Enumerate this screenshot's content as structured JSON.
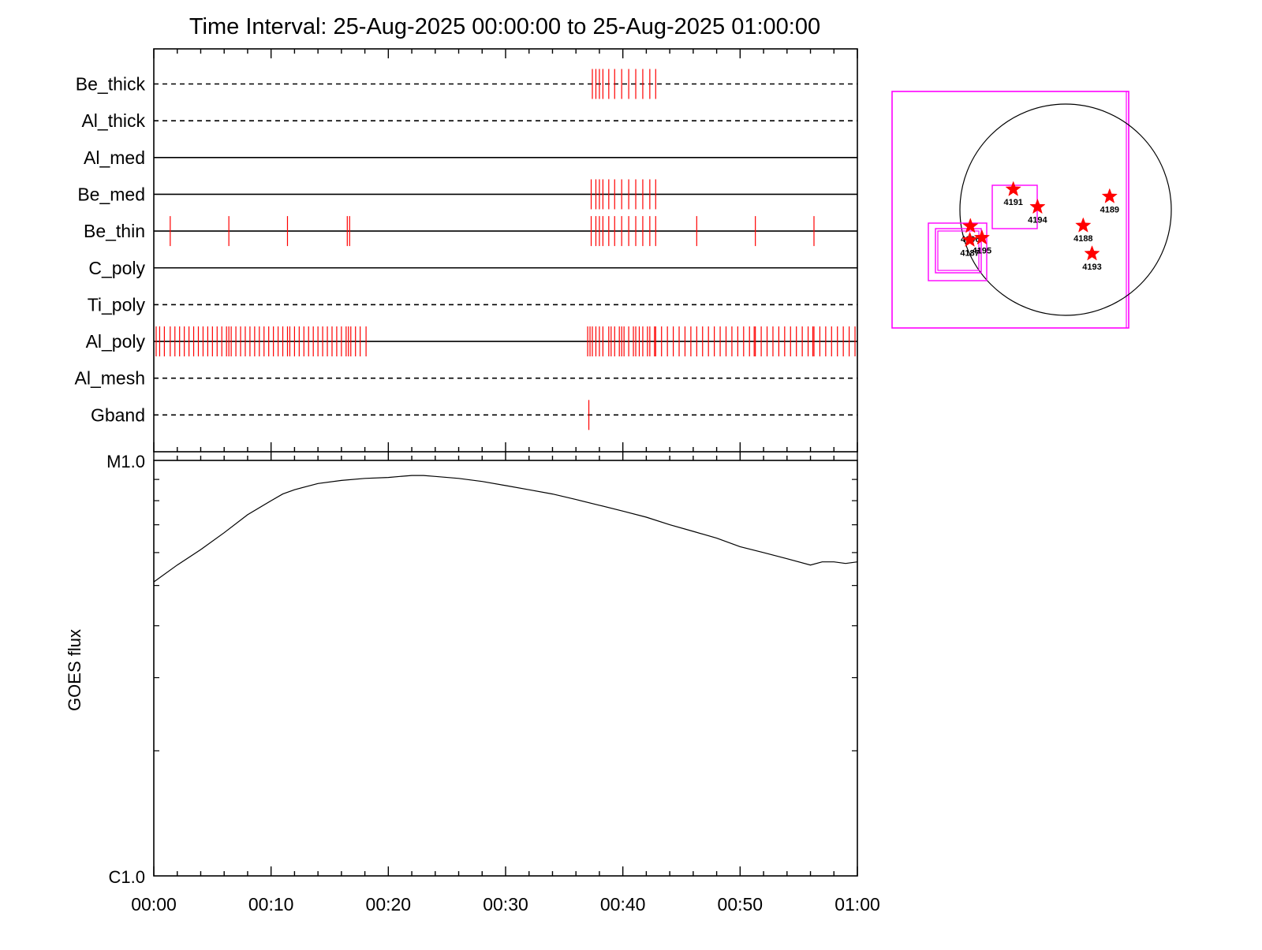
{
  "title": "Time Interval: 25-Aug-2025 00:00:00 to 25-Aug-2025 01:00:00",
  "colors": {
    "mark": "#ff0000",
    "frame": "#000000",
    "box": "#ff00ff"
  },
  "chart_data": [
    {
      "type": "event_timeline",
      "x_unit": "minutes after 00:00",
      "xlim": [
        0,
        60
      ],
      "filters": [
        {
          "name": "Be_thick",
          "style": "dashed",
          "times": [
            37.4,
            37.7,
            38.0,
            38.3,
            38.8,
            39.3,
            39.9,
            40.5,
            41.1,
            41.7,
            42.3,
            42.8
          ]
        },
        {
          "name": "Al_thick",
          "style": "dashed",
          "times": []
        },
        {
          "name": "Al_med",
          "style": "solid",
          "times": []
        },
        {
          "name": "Be_med",
          "style": "solid",
          "times": [
            37.3,
            37.7,
            38.0,
            38.3,
            38.8,
            39.3,
            39.9,
            40.5,
            41.1,
            41.7,
            42.3,
            42.8
          ]
        },
        {
          "name": "Be_thin",
          "style": "solid",
          "times": [
            1.4,
            6.4,
            11.4,
            16.5,
            16.7,
            37.3,
            37.7,
            38.0,
            38.3,
            38.8,
            39.3,
            39.9,
            40.5,
            41.1,
            41.7,
            42.3,
            42.8,
            46.3,
            51.3,
            56.3
          ]
        },
        {
          "name": "C_poly",
          "style": "solid",
          "times": []
        },
        {
          "name": "Ti_poly",
          "style": "dashed",
          "times": []
        },
        {
          "name": "Al_poly",
          "style": "solid",
          "times": [
            0.2,
            0.5,
            0.9,
            1.4,
            1.8,
            2.2,
            2.6,
            3.0,
            3.4,
            3.8,
            4.2,
            4.6,
            5.0,
            5.4,
            5.8,
            6.2,
            6.4,
            6.6,
            7.0,
            7.4,
            7.8,
            8.2,
            8.6,
            9.0,
            9.4,
            9.8,
            10.2,
            10.6,
            11.0,
            11.4,
            11.6,
            12.0,
            12.4,
            12.8,
            13.2,
            13.6,
            14.0,
            14.4,
            14.8,
            15.2,
            15.6,
            16.0,
            16.4,
            16.6,
            16.8,
            17.2,
            17.6,
            18.1,
            37.0,
            37.2,
            37.4,
            37.7,
            38.0,
            38.3,
            38.8,
            39.0,
            39.3,
            39.7,
            39.9,
            40.1,
            40.5,
            40.9,
            41.1,
            41.4,
            41.7,
            42.1,
            42.3,
            42.7,
            42.8,
            43.3,
            43.8,
            44.3,
            44.8,
            45.3,
            45.8,
            46.3,
            46.8,
            47.3,
            47.8,
            48.3,
            48.8,
            49.3,
            49.8,
            50.3,
            50.8,
            51.2,
            51.3,
            51.8,
            52.3,
            52.8,
            53.3,
            53.8,
            54.3,
            54.8,
            55.3,
            55.8,
            56.2,
            56.3,
            56.8,
            57.3,
            57.8,
            58.3,
            58.8,
            59.3,
            59.8
          ]
        },
        {
          "name": "Al_mesh",
          "style": "dashed",
          "times": []
        },
        {
          "name": "Gband",
          "style": "dashed",
          "times": [
            37.1
          ]
        }
      ]
    },
    {
      "type": "line",
      "xlabel": "",
      "ylabel": "GOES flux",
      "x_unit": "minutes after 00:00",
      "xlim": [
        0,
        60
      ],
      "ylog": true,
      "ylim": [
        1e-06,
        1e-05
      ],
      "y_tick_labels": [
        {
          "value": 1e-05,
          "label": "M1.0"
        },
        {
          "value": 1e-06,
          "label": "C1.0"
        }
      ],
      "x_tick_labels": [
        {
          "value": 0,
          "label": "00:00"
        },
        {
          "value": 10,
          "label": "00:10"
        },
        {
          "value": 20,
          "label": "00:20"
        },
        {
          "value": 30,
          "label": "00:30"
        },
        {
          "value": 40,
          "label": "00:40"
        },
        {
          "value": 50,
          "label": "00:50"
        },
        {
          "value": 60,
          "label": "01:00"
        }
      ],
      "x": [
        0,
        2,
        4,
        6,
        8,
        10,
        11,
        12,
        14,
        16,
        18,
        20,
        21,
        22,
        23,
        24,
        26,
        28,
        30,
        32,
        34,
        36,
        38,
        40,
        42,
        44,
        46,
        48,
        50,
        52,
        54,
        56,
        57,
        58,
        59,
        60
      ],
      "y": [
        5.1e-06,
        5.6e-06,
        6.1e-06,
        6.7e-06,
        7.4e-06,
        8e-06,
        8.3e-06,
        8.5e-06,
        8.8e-06,
        8.95e-06,
        9.05e-06,
        9.1e-06,
        9.15e-06,
        9.2e-06,
        9.2e-06,
        9.15e-06,
        9.05e-06,
        8.9e-06,
        8.7e-06,
        8.5e-06,
        8.3e-06,
        8.05e-06,
        7.8e-06,
        7.55e-06,
        7.3e-06,
        7e-06,
        6.75e-06,
        6.5e-06,
        6.2e-06,
        6e-06,
        5.8e-06,
        5.6e-06,
        5.7e-06,
        5.7e-06,
        5.65e-06,
        5.7e-06
      ]
    },
    {
      "type": "scatter",
      "title": "",
      "ar_labels": [
        {
          "label": "4191",
          "x": -475,
          "y": 185
        },
        {
          "label": "4194",
          "x": -255,
          "y": 25
        },
        {
          "label": "4189",
          "x": 400,
          "y": 120
        },
        {
          "label": "4188",
          "x": 160,
          "y": -145
        },
        {
          "label": "4193",
          "x": 240,
          "y": -400
        },
        {
          "label": "4196",
          "x": -865,
          "y": -150
        },
        {
          "label": "4195",
          "x": -760,
          "y": -255
        },
        {
          "label": "4187",
          "x": -870,
          "y": -275
        }
      ],
      "units": "arcsec"
    }
  ]
}
